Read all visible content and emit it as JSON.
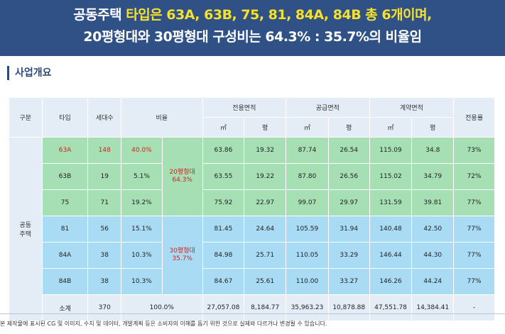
{
  "banner": {
    "line1_white": "공동주택",
    "line1_yellow": "타입은 63A, 63B, 75, 81, 84A, 84B 총 6개이며,",
    "line2": "20평형대와 30평형대 구성비는 64.3% : 35.7%의 비율임"
  },
  "section_title": "사업개요",
  "table": {
    "headers": {
      "category": "구분",
      "type": "타입",
      "households": "세대수",
      "ratio": "비율",
      "exclusive_area": "전용면적",
      "supply_area": "공급면적",
      "contract_area": "계약면적",
      "exclusive_rate": "전용률",
      "unit_m2": "㎡",
      "unit_pyeong": "평"
    },
    "category_label": "공동\n주택",
    "group1_label": "20평형대\n64.3%",
    "group2_label": "30평형대\n35.7%",
    "rows": [
      {
        "type": "63A",
        "households": "148",
        "ratio": "40.0%",
        "ex_m2": "63.86",
        "ex_py": "19.32",
        "sup_m2": "87.74",
        "sup_py": "26.54",
        "con_m2": "115.09",
        "con_py": "34.8",
        "rate": "73%"
      },
      {
        "type": "63B",
        "households": "19",
        "ratio": "5.1%",
        "ex_m2": "63.55",
        "ex_py": "19.22",
        "sup_m2": "87.80",
        "sup_py": "26.56",
        "con_m2": "115.02",
        "con_py": "34.79",
        "rate": "72%"
      },
      {
        "type": "75",
        "households": "71",
        "ratio": "19.2%",
        "ex_m2": "75.92",
        "ex_py": "22.97",
        "sup_m2": "99.07",
        "sup_py": "29.97",
        "con_m2": "131.59",
        "con_py": "39.81",
        "rate": "77%"
      },
      {
        "type": "81",
        "households": "56",
        "ratio": "15.1%",
        "ex_m2": "81.45",
        "ex_py": "24.64",
        "sup_m2": "105.59",
        "sup_py": "31.94",
        "con_m2": "140.48",
        "con_py": "42.50",
        "rate": "77%"
      },
      {
        "type": "84A",
        "households": "38",
        "ratio": "10.3%",
        "ex_m2": "84.98",
        "ex_py": "25.71",
        "sup_m2": "110.05",
        "sup_py": "33.29",
        "con_m2": "146.44",
        "con_py": "44.30",
        "rate": "77%"
      },
      {
        "type": "84B",
        "households": "38",
        "ratio": "10.3%",
        "ex_m2": "84.67",
        "ex_py": "25.61",
        "sup_m2": "110.00",
        "sup_py": "33.27",
        "con_m2": "146.26",
        "con_py": "44.24",
        "rate": "77%"
      }
    ],
    "subtotal": {
      "label": "소계",
      "households": "370",
      "ratio": "100.0%",
      "ex_m2": "27,057.08",
      "ex_py": "8,184.77",
      "sup_m2": "35,963.23",
      "sup_py": "10,878.88",
      "con_m2": "47,551.78",
      "con_py": "14,384.41",
      "rate": "-"
    }
  },
  "disclaimer": "본 제작물에 표시된 CG 및 이미지, 수치 및 데이터, 개발계획 등은 소비자의 이해를 돕기 위한 것으로 실제와 다르거나 변경될 수 있습니다.",
  "colors": {
    "banner_bg": "#2f5185",
    "banner_highlight": "#f7e12b",
    "header_bg": "#e4ecf6",
    "group1_bg": "#a7dfb5",
    "group2_bg": "#a9dcf4",
    "highlight_text": "#d2221f"
  }
}
